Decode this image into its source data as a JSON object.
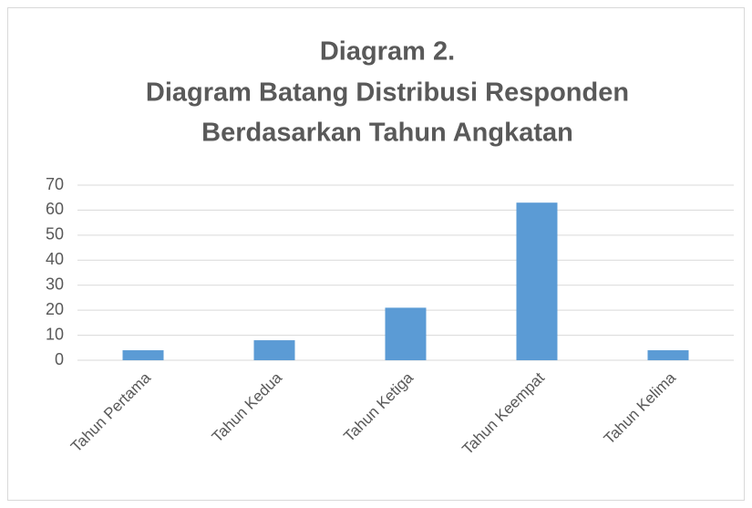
{
  "chart_data": {
    "type": "bar",
    "title": [
      "Diagram 2.",
      "Diagram Batang Distribusi Responden",
      "Berdasarkan Tahun Angkatan"
    ],
    "categories": [
      "Tahun Pertama",
      "Tahun Kedua",
      "Tahun Ketiga",
      "Tahun Keempat",
      "Tahun Kelima"
    ],
    "values": [
      4,
      8,
      21,
      63,
      4
    ],
    "color": "#5b9bd5",
    "ylim": [
      0,
      70
    ],
    "yticks": [
      0,
      10,
      20,
      30,
      40,
      50,
      60,
      70
    ],
    "grid": true
  }
}
